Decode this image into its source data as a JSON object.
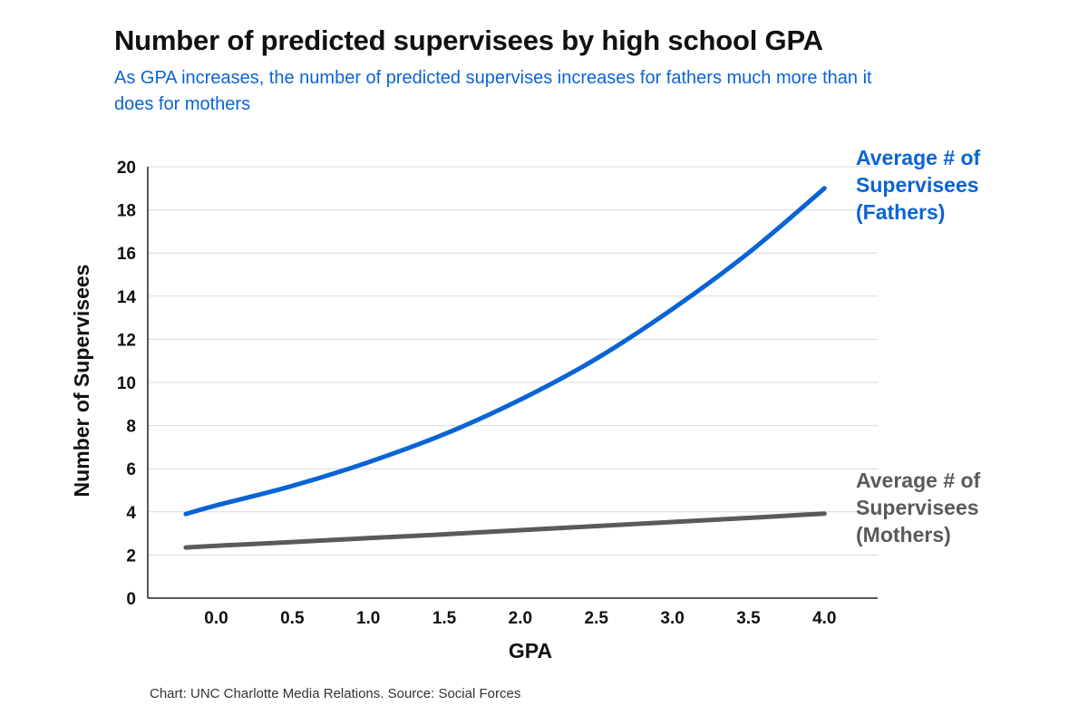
{
  "header": {
    "title": "Number of predicted supervisees by high school GPA",
    "subtitle": "As GPA increases, the number of predicted supervises increases for fathers much more than it does for mothers"
  },
  "footer": {
    "source": "Chart: UNC Charlotte Media Relations. Source: Social Forces"
  },
  "colors": {
    "fathers": "#0a64d6",
    "mothers": "#5a5a5a",
    "subtitle": "#0a64d6",
    "grid": "#d9d9d9",
    "axis": "#222222"
  },
  "chart_data": {
    "type": "line",
    "title": "Number of predicted supervisees by high school GPA",
    "xlabel": "GPA",
    "ylabel": "Number of Supervisees",
    "xlim": [
      -0.45,
      4.35
    ],
    "ylim": [
      0,
      20
    ],
    "x_ticks": [
      0.0,
      0.5,
      1.0,
      1.5,
      2.0,
      2.5,
      3.0,
      3.5,
      4.0
    ],
    "x_tick_labels": [
      "0.0",
      "0.5",
      "1.0",
      "1.5",
      "2.0",
      "2.5",
      "3.0",
      "3.5",
      "4.0"
    ],
    "y_ticks": [
      0,
      2,
      4,
      6,
      8,
      10,
      12,
      14,
      16,
      18,
      20
    ],
    "y_tick_labels": [
      "0",
      "2",
      "4",
      "6",
      "8",
      "10",
      "12",
      "14",
      "16",
      "18",
      "20"
    ],
    "grid": "horizontal",
    "legend": "direct labels at right end of lines",
    "series": [
      {
        "name": "Fathers",
        "label_lines": [
          "Average # of",
          "Supervisees",
          "(Fathers)"
        ],
        "color": "#0a64d6",
        "x": [
          -0.2,
          0.0,
          0.5,
          1.0,
          1.5,
          2.0,
          2.5,
          3.0,
          3.5,
          4.0
        ],
        "values": [
          3.9,
          4.3,
          5.2,
          6.3,
          7.6,
          9.2,
          11.1,
          13.4,
          16.0,
          19.0
        ]
      },
      {
        "name": "Mothers",
        "label_lines": [
          "Average # of",
          "Supervisees",
          "(Mothers)"
        ],
        "color": "#5a5a5a",
        "x": [
          -0.2,
          0.0,
          0.5,
          1.0,
          1.5,
          2.0,
          2.5,
          3.0,
          3.5,
          4.0
        ],
        "values": [
          2.35,
          2.43,
          2.6,
          2.78,
          2.96,
          3.15,
          3.34,
          3.53,
          3.72,
          3.92
        ]
      }
    ]
  }
}
